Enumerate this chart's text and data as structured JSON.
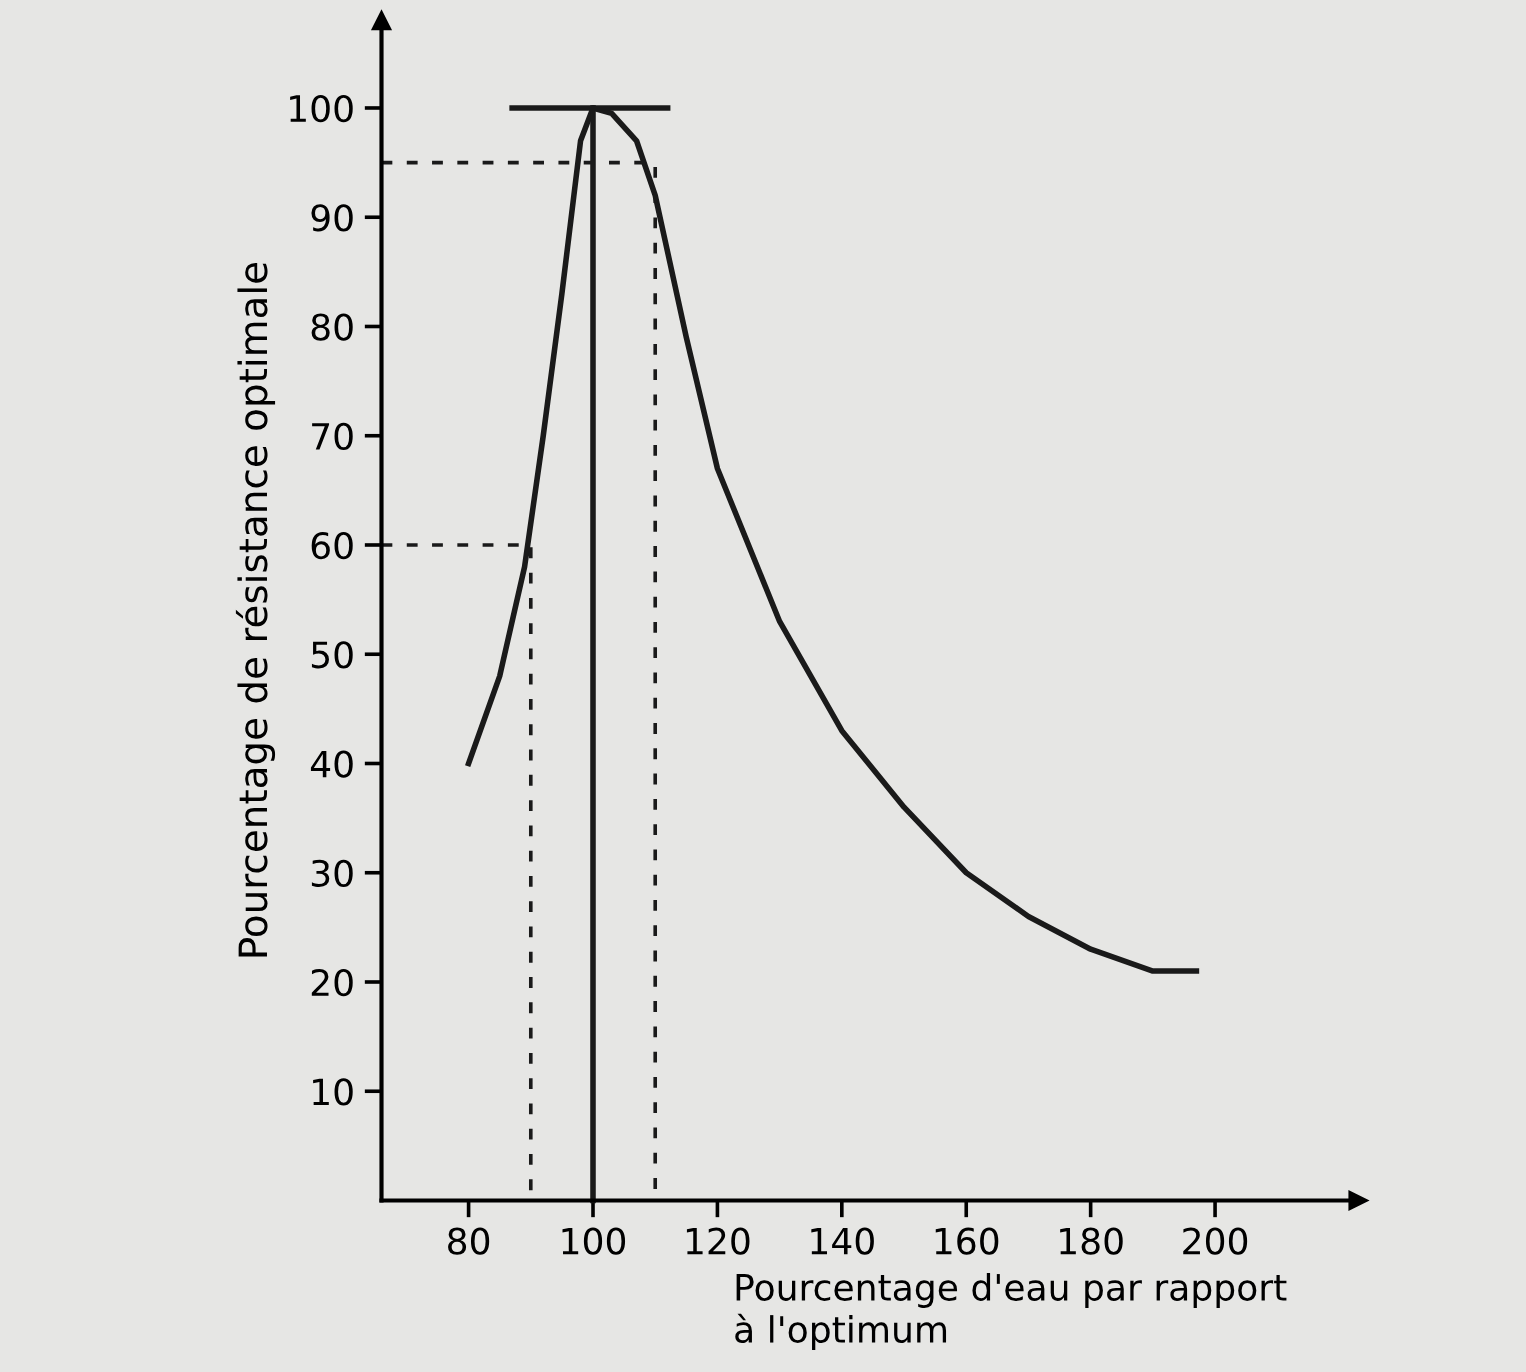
{
  "chart_data": {
    "type": "line",
    "xlabel": "Pourcentage d'eau par rapport\nà l'optimum",
    "ylabel": "Pourcentage de résistance optimale",
    "xlim": [
      66,
      223
    ],
    "ylim": [
      0,
      108
    ],
    "xticks": [
      80,
      100,
      120,
      140,
      160,
      180,
      200
    ],
    "yticks": [
      10,
      20,
      30,
      40,
      50,
      60,
      70,
      80,
      90,
      100
    ],
    "grid": false,
    "marker": "none",
    "series": [
      {
        "color": "#1a1a1a",
        "line_style": "solid",
        "x": [
          80,
          85,
          89,
          92,
          95,
          98,
          100,
          103,
          107,
          110,
          115,
          120,
          130,
          140,
          150,
          160,
          170,
          180,
          190,
          197
        ],
        "values": [
          40,
          48,
          58,
          70,
          83,
          97,
          100,
          99.5,
          97,
          92,
          79,
          67,
          53,
          43,
          36,
          30,
          26,
          23,
          21,
          21
        ]
      },
      {
        "color": "#1a1a1a",
        "line_style": "solid",
        "x": [
          100,
          100
        ],
        "values": [
          0,
          100
        ]
      },
      {
        "color": "#1a1a1a",
        "line_style": "solid",
        "x": [
          87,
          112
        ],
        "values": [
          100,
          100
        ]
      },
      {
        "color": "#1a1a1a",
        "line_style": "dashed",
        "x": [
          66,
          90,
          90
        ],
        "values": [
          60,
          60,
          0
        ]
      },
      {
        "color": "#1a1a1a",
        "line_style": "dashed",
        "x": [
          66,
          110,
          110
        ],
        "values": [
          95,
          95,
          0
        ]
      }
    ]
  }
}
